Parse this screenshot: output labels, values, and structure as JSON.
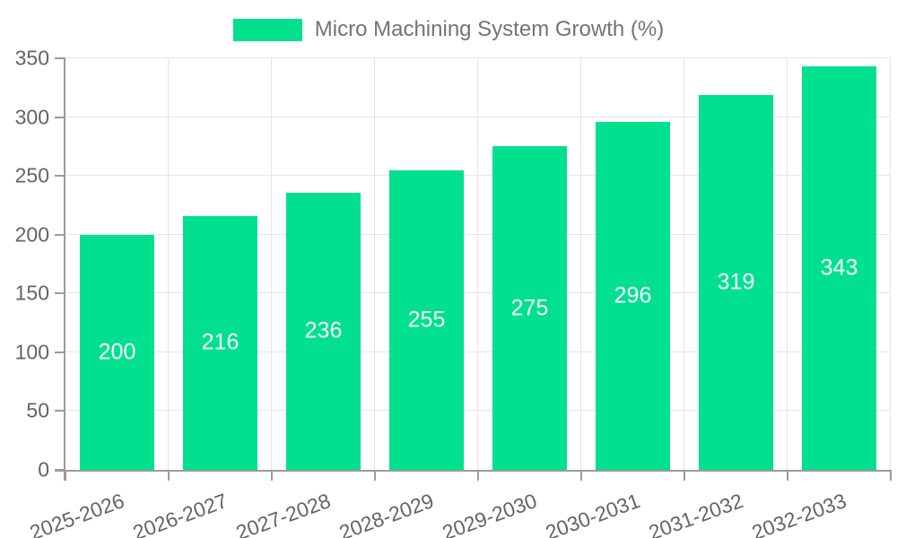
{
  "chart_data": {
    "type": "bar",
    "title": "Micro Machining System Growth (%)",
    "categories": [
      "2025-2026",
      "2026-2027",
      "2027-2028",
      "2028-2029",
      "2029-2030",
      "2030-2031",
      "2031-2032",
      "2032-2033"
    ],
    "values": [
      200,
      216,
      236,
      255,
      275,
      296,
      319,
      343
    ],
    "xlabel": "",
    "ylabel": "",
    "ylim": [
      0,
      350
    ],
    "ytick_step": 50,
    "ytick_labels": [
      "0",
      "50",
      "100",
      "150",
      "200",
      "250",
      "300",
      "350"
    ],
    "grid": true,
    "legend_position": "top-center",
    "x_label_rotation_deg": -20,
    "bar_labels_shown": true
  },
  "legend": {
    "label": "Micro Machining System Growth (%)"
  },
  "colors": {
    "bar": "#00E08E",
    "grid": "#e5e5e5",
    "axis": "#9b9b9b",
    "tick_label": "#646464",
    "legend_text": "#737373",
    "bar_label": "#ffffff",
    "background": "#ffffff"
  }
}
